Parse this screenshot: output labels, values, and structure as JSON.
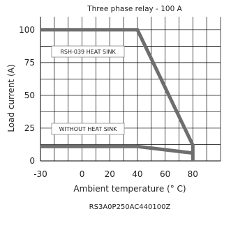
{
  "chart_data": {
    "type": "line",
    "title": "Three phase relay - 100 A",
    "xlabel": "Ambient temperature (° C)",
    "ylabel": "Load current (A)",
    "xlim": [
      -30,
      100
    ],
    "ylim": [
      0,
      110
    ],
    "x_ticks": [
      "-30",
      "0",
      "20",
      "40",
      "60",
      "80"
    ],
    "y_ticks": [
      "0",
      "25",
      "50",
      "75",
      "100"
    ],
    "grid": true,
    "series": [
      {
        "name": "RSH-039 HEAT SINK",
        "x": [
          -30,
          40,
          80,
          80
        ],
        "y": [
          100,
          100,
          12,
          0
        ]
      },
      {
        "name": "WITHOUT HEAT SINK",
        "x": [
          -30,
          40,
          80
        ],
        "y": [
          11,
          11,
          6
        ]
      }
    ],
    "annotations": [
      "RSH-039 HEAT SINK",
      "WITHOUT HEAT SINK"
    ],
    "footnote": "RS3A0P250AC440100Z",
    "line_color": "#6e6e6e",
    "grid_color": "#000000"
  }
}
